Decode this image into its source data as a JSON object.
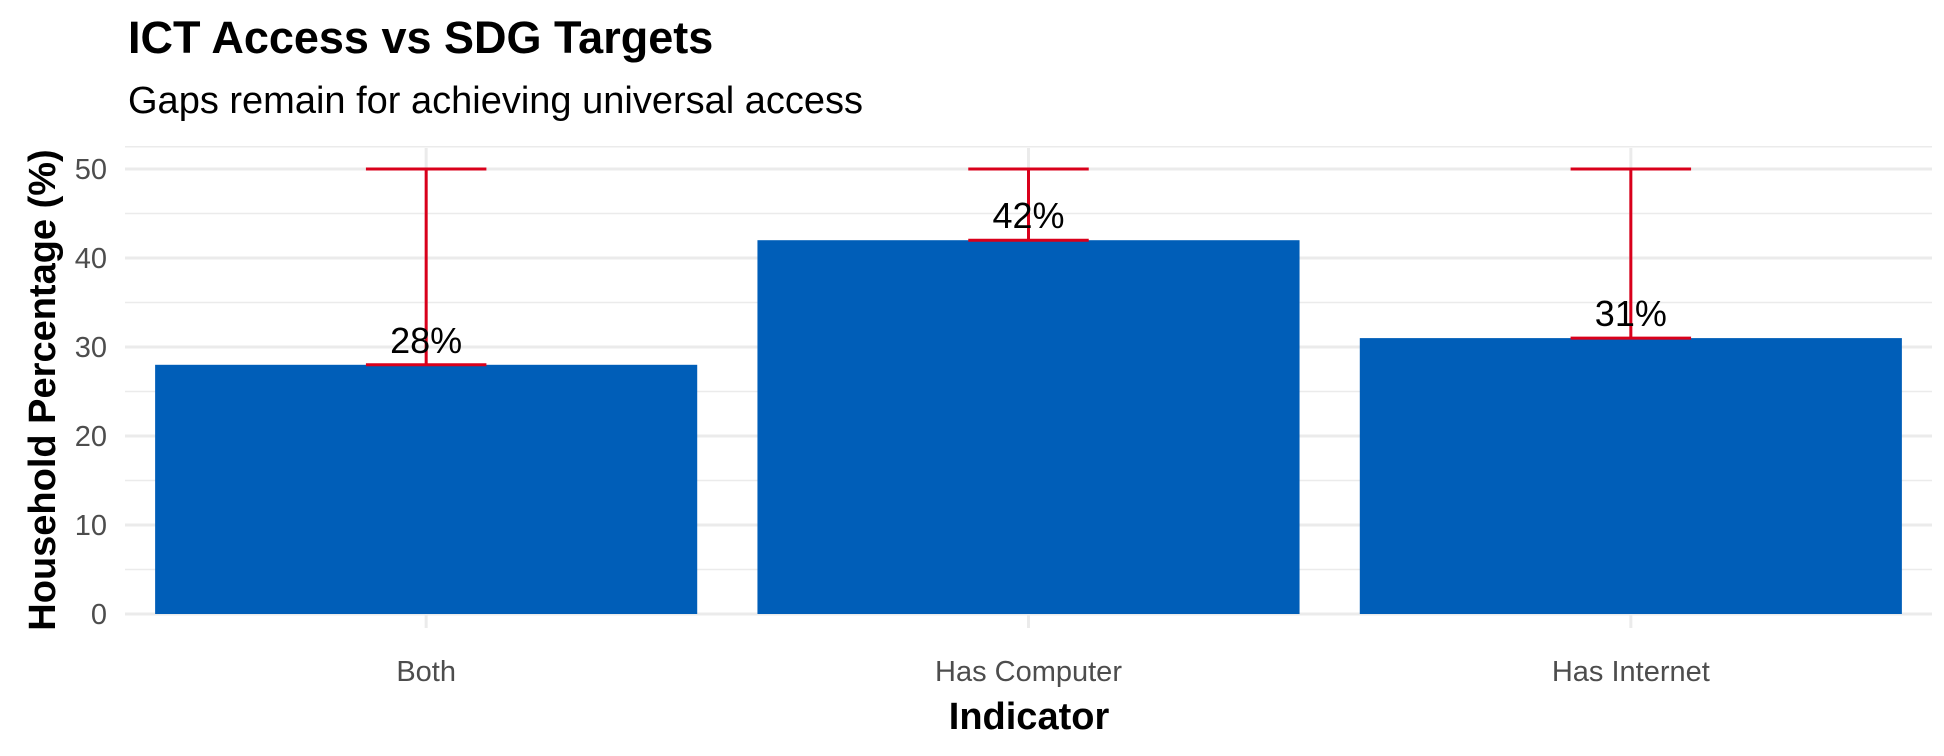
{
  "chart_data": {
    "type": "bar",
    "title": "ICT Access vs SDG Targets",
    "subtitle": "Gaps remain for achieving universal access",
    "xlabel": "Indicator",
    "ylabel": "Household Percentage (%)",
    "categories": [
      "Both",
      "Has Computer",
      "Has Internet"
    ],
    "values": [
      28,
      42,
      31
    ],
    "data_labels": [
      "28%",
      "42%",
      "31%"
    ],
    "targets": [
      50,
      50,
      50
    ],
    "ylim": [
      0,
      50
    ],
    "yticks": [
      0,
      10,
      20,
      30,
      40,
      50
    ],
    "grid": true,
    "legend": "none",
    "colors": {
      "bar": "#005EB8",
      "target_range": "#D9001B",
      "grid": "#EBEBEB"
    }
  }
}
